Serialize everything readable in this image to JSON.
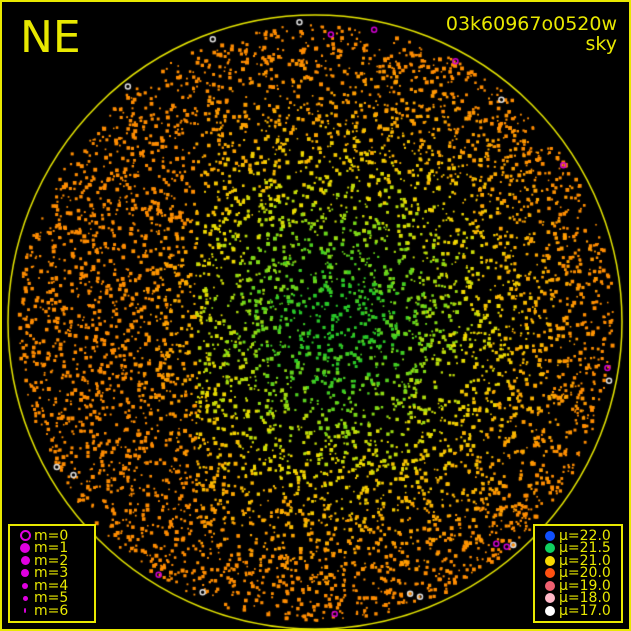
{
  "direction_label": "NE",
  "title": {
    "id": "03k60967o0520w",
    "subtitle": "sky"
  },
  "magnitude_legend": [
    {
      "label": "m=0",
      "style": "ring"
    },
    {
      "label": "m=1",
      "style": "dot"
    },
    {
      "label": "m=2",
      "style": "dot"
    },
    {
      "label": "m=3",
      "style": "dot"
    },
    {
      "label": "m=4",
      "style": "dot"
    },
    {
      "label": "m=5",
      "style": "dot"
    },
    {
      "label": "m=6",
      "style": "dot"
    }
  ],
  "magnitude_color": "#e000e0",
  "brightness_legend": [
    {
      "label": "μ=22.0",
      "color": "#1050ff"
    },
    {
      "label": "μ=21.5",
      "color": "#10d060"
    },
    {
      "label": "μ=21.0",
      "color": "#f8d800"
    },
    {
      "label": "μ=20.0",
      "color": "#ff5010"
    },
    {
      "label": "μ=19.0",
      "color": "#f06070"
    },
    {
      "label": "μ=18.0",
      "color": "#ffb8c8"
    },
    {
      "label": "μ=17.0",
      "color": "#ffffff"
    }
  ],
  "frame_color": "#e8e800"
}
